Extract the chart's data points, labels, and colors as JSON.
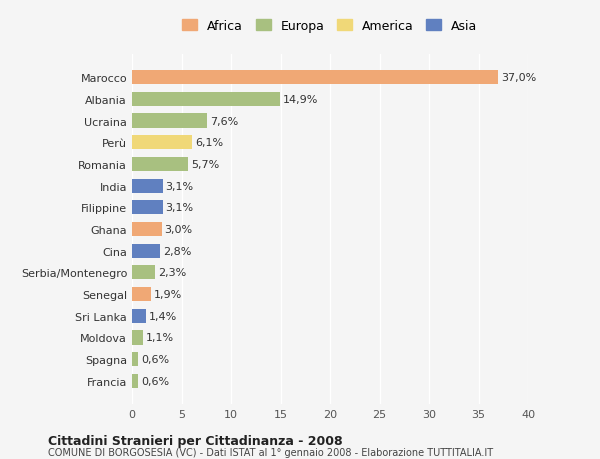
{
  "countries": [
    "Francia",
    "Spagna",
    "Moldova",
    "Sri Lanka",
    "Senegal",
    "Serbia/Montenegro",
    "Cina",
    "Ghana",
    "Filippine",
    "India",
    "Romania",
    "Perù",
    "Ucraina",
    "Albania",
    "Marocco"
  ],
  "values": [
    0.6,
    0.6,
    1.1,
    1.4,
    1.9,
    2.3,
    2.8,
    3.0,
    3.1,
    3.1,
    5.7,
    6.1,
    7.6,
    14.9,
    37.0
  ],
  "labels": [
    "0,6%",
    "0,6%",
    "1,1%",
    "1,4%",
    "1,9%",
    "2,3%",
    "2,8%",
    "3,0%",
    "3,1%",
    "3,1%",
    "5,7%",
    "6,1%",
    "7,6%",
    "14,9%",
    "37,0%"
  ],
  "continents": [
    "Europa",
    "Europa",
    "Europa",
    "Asia",
    "Africa",
    "Europa",
    "Asia",
    "Africa",
    "Asia",
    "Asia",
    "Europa",
    "America",
    "Europa",
    "Europa",
    "Africa"
  ],
  "colors": {
    "Africa": "#F0A875",
    "Europa": "#A8C080",
    "America": "#F0D878",
    "Asia": "#6080C0"
  },
  "legend_order": [
    "Africa",
    "Europa",
    "America",
    "Asia"
  ],
  "title1": "Cittadini Stranieri per Cittadinanza - 2008",
  "title2": "COMUNE DI BORGOSESIA (VC) - Dati ISTAT al 1° gennaio 2008 - Elaborazione TUTTITALIA.IT",
  "xlim": [
    0,
    40
  ],
  "xticks": [
    0,
    5,
    10,
    15,
    20,
    25,
    30,
    35,
    40
  ],
  "background_color": "#f5f5f5",
  "bar_height": 0.65
}
